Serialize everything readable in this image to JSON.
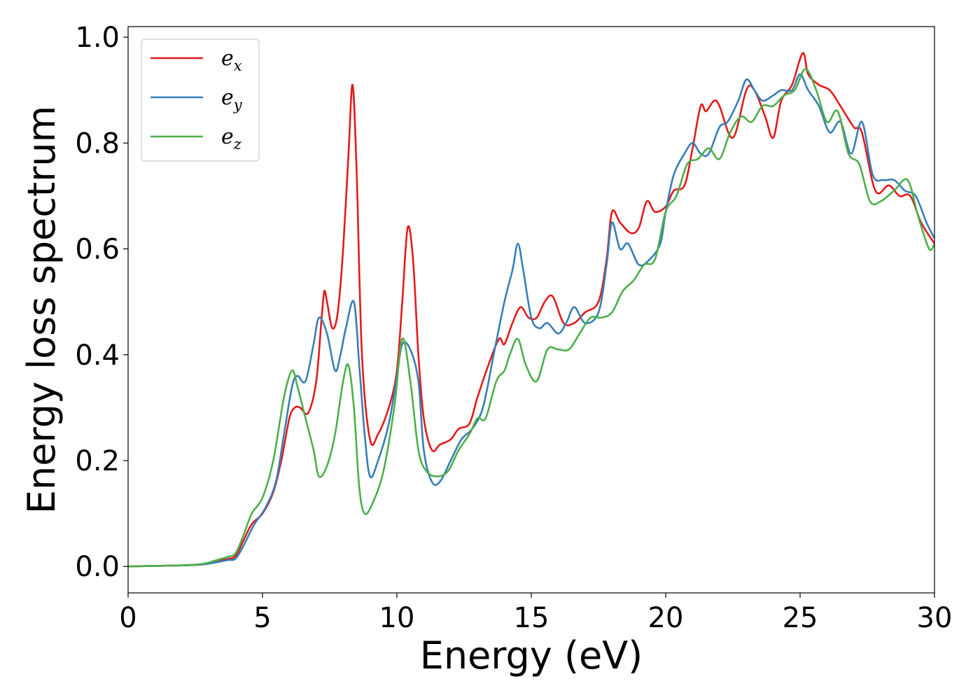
{
  "chart_data": {
    "type": "line",
    "xlabel": "Energy (eV)",
    "ylabel": "Energy loss spectrum",
    "xlim": [
      0,
      30
    ],
    "ylim": [
      -0.05,
      1.02
    ],
    "xticks": [
      0,
      5,
      10,
      15,
      20,
      25,
      30
    ],
    "yticks": [
      0.0,
      0.2,
      0.4,
      0.6,
      0.8,
      1.0
    ],
    "xtick_labels": [
      "0",
      "5",
      "10",
      "15",
      "20",
      "25",
      "30"
    ],
    "ytick_labels": [
      "0.0",
      "0.2",
      "0.4",
      "0.6",
      "0.8",
      "1.0"
    ],
    "grid": false,
    "legend_position": "top-left",
    "series": [
      {
        "name": "e_x",
        "label_base": "e",
        "label_sub": "x",
        "color": "#e41a1c",
        "points": [
          [
            0,
            0
          ],
          [
            1,
            0.001
          ],
          [
            2,
            0.002
          ],
          [
            2.8,
            0.004
          ],
          [
            3.3,
            0.01
          ],
          [
            3.7,
            0.014
          ],
          [
            4,
            0.02
          ],
          [
            4.3,
            0.05
          ],
          [
            4.6,
            0.08
          ],
          [
            5,
            0.1
          ],
          [
            5.4,
            0.14
          ],
          [
            5.7,
            0.2
          ],
          [
            6,
            0.28
          ],
          [
            6.2,
            0.3
          ],
          [
            6.4,
            0.3
          ],
          [
            6.7,
            0.29
          ],
          [
            7,
            0.35
          ],
          [
            7.2,
            0.47
          ],
          [
            7.3,
            0.52
          ],
          [
            7.4,
            0.5
          ],
          [
            7.6,
            0.45
          ],
          [
            7.8,
            0.48
          ],
          [
            8,
            0.6
          ],
          [
            8.2,
            0.78
          ],
          [
            8.35,
            0.91
          ],
          [
            8.5,
            0.75
          ],
          [
            8.7,
            0.4
          ],
          [
            9,
            0.24
          ],
          [
            9.3,
            0.25
          ],
          [
            9.7,
            0.3
          ],
          [
            10,
            0.37
          ],
          [
            10.2,
            0.5
          ],
          [
            10.4,
            0.64
          ],
          [
            10.6,
            0.58
          ],
          [
            10.8,
            0.4
          ],
          [
            11,
            0.28
          ],
          [
            11.3,
            0.22
          ],
          [
            11.6,
            0.23
          ],
          [
            12,
            0.24
          ],
          [
            12.3,
            0.26
          ],
          [
            12.7,
            0.27
          ],
          [
            13,
            0.32
          ],
          [
            13.4,
            0.38
          ],
          [
            13.8,
            0.43
          ],
          [
            14,
            0.42
          ],
          [
            14.3,
            0.46
          ],
          [
            14.6,
            0.49
          ],
          [
            14.9,
            0.47
          ],
          [
            15.2,
            0.47
          ],
          [
            15.5,
            0.5
          ],
          [
            15.8,
            0.51
          ],
          [
            16.2,
            0.46
          ],
          [
            16.6,
            0.46
          ],
          [
            17,
            0.48
          ],
          [
            17.5,
            0.5
          ],
          [
            17.8,
            0.58
          ],
          [
            18,
            0.67
          ],
          [
            18.3,
            0.65
          ],
          [
            18.7,
            0.63
          ],
          [
            19,
            0.64
          ],
          [
            19.3,
            0.69
          ],
          [
            19.6,
            0.67
          ],
          [
            20,
            0.68
          ],
          [
            20.3,
            0.71
          ],
          [
            20.7,
            0.72
          ],
          [
            21,
            0.79
          ],
          [
            21.3,
            0.87
          ],
          [
            21.5,
            0.86
          ],
          [
            21.8,
            0.88
          ],
          [
            22,
            0.87
          ],
          [
            22.5,
            0.81
          ],
          [
            23,
            0.9
          ],
          [
            23.3,
            0.9
          ],
          [
            23.7,
            0.85
          ],
          [
            24,
            0.81
          ],
          [
            24.3,
            0.88
          ],
          [
            24.7,
            0.91
          ],
          [
            25.1,
            0.97
          ],
          [
            25.3,
            0.93
          ],
          [
            25.7,
            0.91
          ],
          [
            26.1,
            0.9
          ],
          [
            26.5,
            0.87
          ],
          [
            27,
            0.83
          ],
          [
            27.3,
            0.82
          ],
          [
            27.8,
            0.71
          ],
          [
            28.3,
            0.72
          ],
          [
            28.7,
            0.7
          ],
          [
            29.1,
            0.7
          ],
          [
            29.5,
            0.65
          ],
          [
            30,
            0.61
          ]
        ]
      },
      {
        "name": "e_y",
        "label_base": "e",
        "label_sub": "y",
        "color": "#377eb8",
        "points": [
          [
            0,
            0
          ],
          [
            1,
            0.001
          ],
          [
            2,
            0.002
          ],
          [
            2.8,
            0.004
          ],
          [
            3.3,
            0.008
          ],
          [
            3.7,
            0.012
          ],
          [
            4,
            0.015
          ],
          [
            4.3,
            0.04
          ],
          [
            4.7,
            0.08
          ],
          [
            5.1,
            0.11
          ],
          [
            5.5,
            0.16
          ],
          [
            5.8,
            0.25
          ],
          [
            6.1,
            0.34
          ],
          [
            6.3,
            0.36
          ],
          [
            6.6,
            0.35
          ],
          [
            6.9,
            0.42
          ],
          [
            7.1,
            0.47
          ],
          [
            7.4,
            0.44
          ],
          [
            7.7,
            0.37
          ],
          [
            7.9,
            0.4
          ],
          [
            8.1,
            0.45
          ],
          [
            8.4,
            0.5
          ],
          [
            8.6,
            0.38
          ],
          [
            8.8,
            0.25
          ],
          [
            9,
            0.17
          ],
          [
            9.3,
            0.2
          ],
          [
            9.7,
            0.27
          ],
          [
            10,
            0.36
          ],
          [
            10.2,
            0.42
          ],
          [
            10.5,
            0.41
          ],
          [
            10.8,
            0.35
          ],
          [
            11,
            0.22
          ],
          [
            11.3,
            0.16
          ],
          [
            11.6,
            0.16
          ],
          [
            12,
            0.2
          ],
          [
            12.4,
            0.24
          ],
          [
            12.8,
            0.26
          ],
          [
            13.2,
            0.3
          ],
          [
            13.6,
            0.4
          ],
          [
            14,
            0.5
          ],
          [
            14.3,
            0.56
          ],
          [
            14.5,
            0.61
          ],
          [
            14.7,
            0.56
          ],
          [
            15,
            0.47
          ],
          [
            15.3,
            0.45
          ],
          [
            15.6,
            0.46
          ],
          [
            16,
            0.44
          ],
          [
            16.3,
            0.46
          ],
          [
            16.6,
            0.49
          ],
          [
            17,
            0.46
          ],
          [
            17.5,
            0.48
          ],
          [
            17.8,
            0.57
          ],
          [
            18,
            0.65
          ],
          [
            18.3,
            0.6
          ],
          [
            18.6,
            0.61
          ],
          [
            19,
            0.57
          ],
          [
            19.4,
            0.58
          ],
          [
            19.8,
            0.61
          ],
          [
            20,
            0.67
          ],
          [
            20.3,
            0.74
          ],
          [
            20.7,
            0.78
          ],
          [
            21,
            0.8
          ],
          [
            21.3,
            0.78
          ],
          [
            21.6,
            0.78
          ],
          [
            22,
            0.83
          ],
          [
            22.3,
            0.84
          ],
          [
            22.7,
            0.88
          ],
          [
            23,
            0.92
          ],
          [
            23.3,
            0.9
          ],
          [
            23.6,
            0.88
          ],
          [
            24,
            0.89
          ],
          [
            24.3,
            0.9
          ],
          [
            24.7,
            0.9
          ],
          [
            25,
            0.93
          ],
          [
            25.3,
            0.9
          ],
          [
            25.7,
            0.87
          ],
          [
            26.1,
            0.82
          ],
          [
            26.5,
            0.84
          ],
          [
            26.9,
            0.78
          ],
          [
            27.3,
            0.84
          ],
          [
            27.7,
            0.74
          ],
          [
            28.1,
            0.73
          ],
          [
            28.5,
            0.73
          ],
          [
            28.9,
            0.71
          ],
          [
            29.3,
            0.7
          ],
          [
            29.7,
            0.65
          ],
          [
            30,
            0.62
          ]
        ]
      },
      {
        "name": "e_z",
        "label_base": "e",
        "label_sub": "z",
        "color": "#4daf4a",
        "points": [
          [
            0,
            0
          ],
          [
            1,
            0.001
          ],
          [
            2,
            0.002
          ],
          [
            2.8,
            0.005
          ],
          [
            3.3,
            0.012
          ],
          [
            3.7,
            0.018
          ],
          [
            4,
            0.025
          ],
          [
            4.3,
            0.06
          ],
          [
            4.6,
            0.1
          ],
          [
            5,
            0.13
          ],
          [
            5.4,
            0.2
          ],
          [
            5.8,
            0.32
          ],
          [
            6.1,
            0.37
          ],
          [
            6.3,
            0.34
          ],
          [
            6.6,
            0.28
          ],
          [
            6.9,
            0.22
          ],
          [
            7.1,
            0.17
          ],
          [
            7.4,
            0.19
          ],
          [
            7.7,
            0.25
          ],
          [
            8,
            0.35
          ],
          [
            8.2,
            0.38
          ],
          [
            8.4,
            0.3
          ],
          [
            8.6,
            0.15
          ],
          [
            8.8,
            0.1
          ],
          [
            9.1,
            0.12
          ],
          [
            9.5,
            0.18
          ],
          [
            9.9,
            0.3
          ],
          [
            10.2,
            0.43
          ],
          [
            10.5,
            0.35
          ],
          [
            10.8,
            0.22
          ],
          [
            11.1,
            0.18
          ],
          [
            11.5,
            0.17
          ],
          [
            11.9,
            0.18
          ],
          [
            12.3,
            0.22
          ],
          [
            12.7,
            0.25
          ],
          [
            13,
            0.28
          ],
          [
            13.3,
            0.28
          ],
          [
            13.7,
            0.35
          ],
          [
            14,
            0.37
          ],
          [
            14.2,
            0.4
          ],
          [
            14.5,
            0.43
          ],
          [
            14.8,
            0.38
          ],
          [
            15.2,
            0.35
          ],
          [
            15.6,
            0.41
          ],
          [
            16,
            0.41
          ],
          [
            16.4,
            0.41
          ],
          [
            16.8,
            0.44
          ],
          [
            17.2,
            0.47
          ],
          [
            17.6,
            0.47
          ],
          [
            18,
            0.48
          ],
          [
            18.4,
            0.52
          ],
          [
            18.8,
            0.54
          ],
          [
            19.2,
            0.57
          ],
          [
            19.6,
            0.58
          ],
          [
            20,
            0.67
          ],
          [
            20.4,
            0.7
          ],
          [
            20.8,
            0.76
          ],
          [
            21.2,
            0.77
          ],
          [
            21.6,
            0.79
          ],
          [
            22,
            0.77
          ],
          [
            22.4,
            0.82
          ],
          [
            22.8,
            0.85
          ],
          [
            23.2,
            0.84
          ],
          [
            23.6,
            0.87
          ],
          [
            24,
            0.87
          ],
          [
            24.4,
            0.89
          ],
          [
            24.8,
            0.9
          ],
          [
            25.2,
            0.94
          ],
          [
            25.6,
            0.9
          ],
          [
            26,
            0.84
          ],
          [
            26.4,
            0.86
          ],
          [
            26.8,
            0.78
          ],
          [
            27.2,
            0.76
          ],
          [
            27.6,
            0.69
          ],
          [
            28,
            0.69
          ],
          [
            28.5,
            0.71
          ],
          [
            29,
            0.73
          ],
          [
            29.4,
            0.66
          ],
          [
            29.8,
            0.6
          ],
          [
            30,
            0.61
          ]
        ]
      }
    ]
  }
}
